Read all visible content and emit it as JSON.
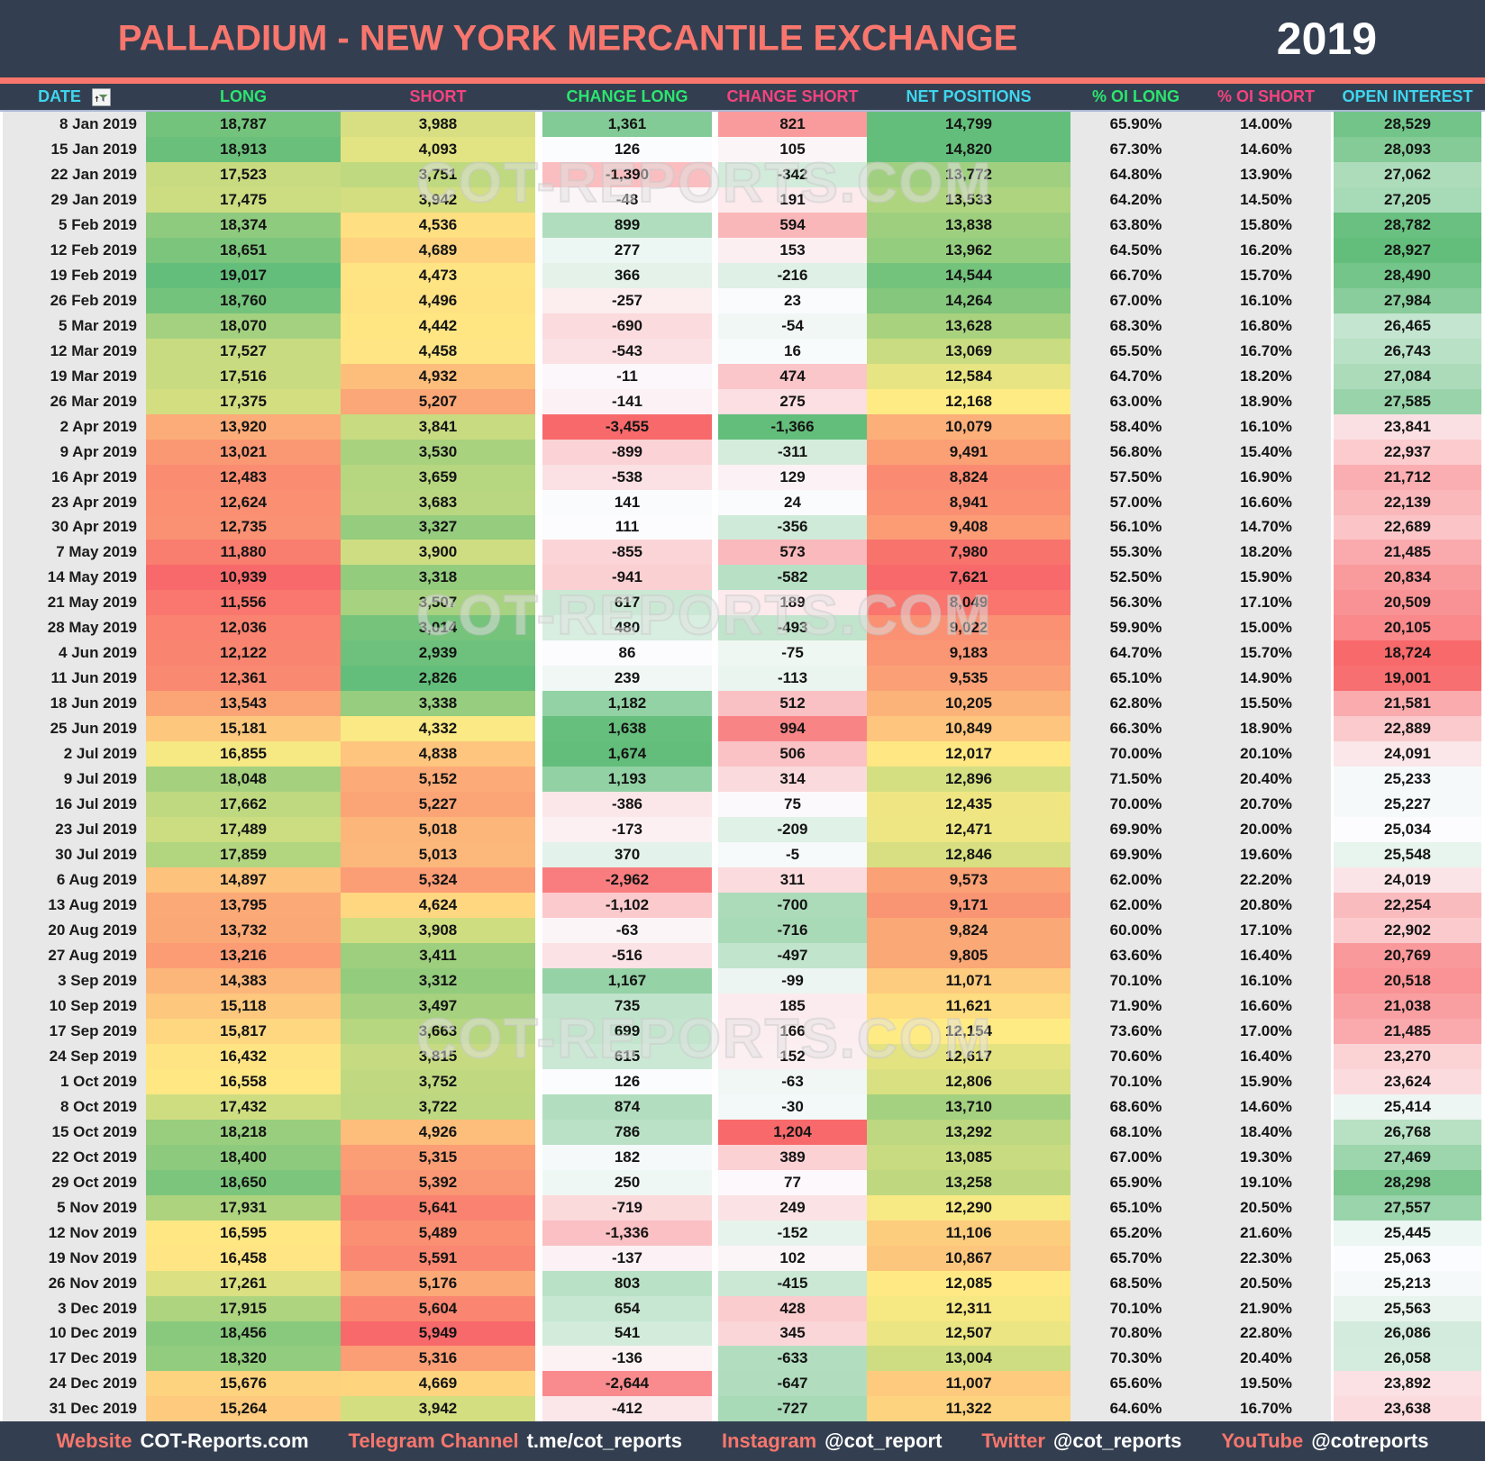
{
  "header": {
    "title": "PALLADIUM - NEW YORK MERCANTILE EXCHANGE",
    "year": "2019"
  },
  "table": {
    "header": [
      {
        "key": "date",
        "label": "DATE",
        "color": "cyan"
      },
      {
        "key": "long",
        "label": "LONG",
        "color": "green"
      },
      {
        "key": "short",
        "label": "SHORT",
        "color": "pink"
      },
      {
        "key": "change_long",
        "label": "CHANGE LONG",
        "color": "green"
      },
      {
        "key": "change_short",
        "label": "CHANGE SHORT",
        "color": "pink"
      },
      {
        "key": "net_positions",
        "label": "NET POSITIONS",
        "color": "cyan"
      },
      {
        "key": "oi_long_pct",
        "label": "% OI LONG",
        "color": "green"
      },
      {
        "key": "oi_short_pct",
        "label": "% OI SHORT",
        "color": "pink"
      },
      {
        "key": "open_interest",
        "label": "OPEN INTEREST",
        "color": "cyan"
      }
    ]
  },
  "watermark": {
    "text": "COT-REPORTS.COM"
  },
  "footer": {
    "links": [
      {
        "label": "Website",
        "value": "COT-Reports.com"
      },
      {
        "label": "Telegram Channel",
        "value": "t.me/cot_reports"
      },
      {
        "label": "Instagram",
        "value": "@cot_report"
      },
      {
        "label": "Twitter",
        "value": "@cot_reports"
      },
      {
        "label": "YouTube",
        "value": "@cotreports"
      }
    ]
  },
  "colors": {
    "navy": "#333F50",
    "salmon": "#F8766D",
    "cyan": "#3FD6EE",
    "green": "#2BE56F",
    "pink": "#F4437E",
    "gray": "#E8E8E8",
    "scale_red": "#F8696B",
    "scale_yellow": "#FFEB84",
    "scale_green": "#63BE7B",
    "scale_white": "#FCFCFF"
  },
  "chart_data": {
    "type": "table",
    "title": "PALLADIUM - NEW YORK MERCANTILE EXCHANGE",
    "year": "2019",
    "columns": [
      "DATE",
      "LONG",
      "SHORT",
      "CHANGE LONG",
      "CHANGE SHORT",
      "NET POSITIONS",
      "% OI LONG",
      "% OI SHORT",
      "OPEN INTEREST"
    ],
    "color_scales": {
      "LONG": "red-yellow-green (min-median-max)",
      "SHORT": "green-yellow-red (min-median-max)",
      "CHANGE LONG": "red-white-green (min-median-max)",
      "CHANGE SHORT": "green-white-red (min-median-max)",
      "NET POSITIONS": "red-yellow-green (min-median-max)",
      "OPEN INTEREST": "red-white-green (min-median-max)"
    },
    "rows": [
      [
        "8 Jan 2019",
        "18,787",
        "3,988",
        "1,361",
        "821",
        "14,799",
        "65.90%",
        "14.00%",
        "28,529"
      ],
      [
        "15 Jan 2019",
        "18,913",
        "4,093",
        "126",
        "105",
        "14,820",
        "67.30%",
        "14.60%",
        "28,093"
      ],
      [
        "22 Jan 2019",
        "17,523",
        "3,751",
        "-1,390",
        "-342",
        "13,772",
        "64.80%",
        "13.90%",
        "27,062"
      ],
      [
        "29 Jan 2019",
        "17,475",
        "3,942",
        "-48",
        "191",
        "13,533",
        "64.20%",
        "14.50%",
        "27,205"
      ],
      [
        "5 Feb 2019",
        "18,374",
        "4,536",
        "899",
        "594",
        "13,838",
        "63.80%",
        "15.80%",
        "28,782"
      ],
      [
        "12 Feb 2019",
        "18,651",
        "4,689",
        "277",
        "153",
        "13,962",
        "64.50%",
        "16.20%",
        "28,927"
      ],
      [
        "19 Feb 2019",
        "19,017",
        "4,473",
        "366",
        "-216",
        "14,544",
        "66.70%",
        "15.70%",
        "28,490"
      ],
      [
        "26 Feb 2019",
        "18,760",
        "4,496",
        "-257",
        "23",
        "14,264",
        "67.00%",
        "16.10%",
        "27,984"
      ],
      [
        "5 Mar 2019",
        "18,070",
        "4,442",
        "-690",
        "-54",
        "13,628",
        "68.30%",
        "16.80%",
        "26,465"
      ],
      [
        "12 Mar 2019",
        "17,527",
        "4,458",
        "-543",
        "16",
        "13,069",
        "65.50%",
        "16.70%",
        "26,743"
      ],
      [
        "19 Mar 2019",
        "17,516",
        "4,932",
        "-11",
        "474",
        "12,584",
        "64.70%",
        "18.20%",
        "27,084"
      ],
      [
        "26 Mar 2019",
        "17,375",
        "5,207",
        "-141",
        "275",
        "12,168",
        "63.00%",
        "18.90%",
        "27,585"
      ],
      [
        "2 Apr 2019",
        "13,920",
        "3,841",
        "-3,455",
        "-1,366",
        "10,079",
        "58.40%",
        "16.10%",
        "23,841"
      ],
      [
        "9 Apr 2019",
        "13,021",
        "3,530",
        "-899",
        "-311",
        "9,491",
        "56.80%",
        "15.40%",
        "22,937"
      ],
      [
        "16 Apr 2019",
        "12,483",
        "3,659",
        "-538",
        "129",
        "8,824",
        "57.50%",
        "16.90%",
        "21,712"
      ],
      [
        "23 Apr 2019",
        "12,624",
        "3,683",
        "141",
        "24",
        "8,941",
        "57.00%",
        "16.60%",
        "22,139"
      ],
      [
        "30 Apr 2019",
        "12,735",
        "3,327",
        "111",
        "-356",
        "9,408",
        "56.10%",
        "14.70%",
        "22,689"
      ],
      [
        "7 May 2019",
        "11,880",
        "3,900",
        "-855",
        "573",
        "7,980",
        "55.30%",
        "18.20%",
        "21,485"
      ],
      [
        "14 May 2019",
        "10,939",
        "3,318",
        "-941",
        "-582",
        "7,621",
        "52.50%",
        "15.90%",
        "20,834"
      ],
      [
        "21 May 2019",
        "11,556",
        "3,507",
        "617",
        "189",
        "8,049",
        "56.30%",
        "17.10%",
        "20,509"
      ],
      [
        "28 May 2019",
        "12,036",
        "3,014",
        "480",
        "-493",
        "9,022",
        "59.90%",
        "15.00%",
        "20,105"
      ],
      [
        "4 Jun 2019",
        "12,122",
        "2,939",
        "86",
        "-75",
        "9,183",
        "64.70%",
        "15.70%",
        "18,724"
      ],
      [
        "11 Jun 2019",
        "12,361",
        "2,826",
        "239",
        "-113",
        "9,535",
        "65.10%",
        "14.90%",
        "19,001"
      ],
      [
        "18 Jun 2019",
        "13,543",
        "3,338",
        "1,182",
        "512",
        "10,205",
        "62.80%",
        "15.50%",
        "21,581"
      ],
      [
        "25 Jun 2019",
        "15,181",
        "4,332",
        "1,638",
        "994",
        "10,849",
        "66.30%",
        "18.90%",
        "22,889"
      ],
      [
        "2 Jul 2019",
        "16,855",
        "4,838",
        "1,674",
        "506",
        "12,017",
        "70.00%",
        "20.10%",
        "24,091"
      ],
      [
        "9 Jul 2019",
        "18,048",
        "5,152",
        "1,193",
        "314",
        "12,896",
        "71.50%",
        "20.40%",
        "25,233"
      ],
      [
        "16 Jul 2019",
        "17,662",
        "5,227",
        "-386",
        "75",
        "12,435",
        "70.00%",
        "20.70%",
        "25,227"
      ],
      [
        "23 Jul 2019",
        "17,489",
        "5,018",
        "-173",
        "-209",
        "12,471",
        "69.90%",
        "20.00%",
        "25,034"
      ],
      [
        "30 Jul 2019",
        "17,859",
        "5,013",
        "370",
        "-5",
        "12,846",
        "69.90%",
        "19.60%",
        "25,548"
      ],
      [
        "6 Aug 2019",
        "14,897",
        "5,324",
        "-2,962",
        "311",
        "9,573",
        "62.00%",
        "22.20%",
        "24,019"
      ],
      [
        "13 Aug 2019",
        "13,795",
        "4,624",
        "-1,102",
        "-700",
        "9,171",
        "62.00%",
        "20.80%",
        "22,254"
      ],
      [
        "20 Aug 2019",
        "13,732",
        "3,908",
        "-63",
        "-716",
        "9,824",
        "60.00%",
        "17.10%",
        "22,902"
      ],
      [
        "27 Aug 2019",
        "13,216",
        "3,411",
        "-516",
        "-497",
        "9,805",
        "63.60%",
        "16.40%",
        "20,769"
      ],
      [
        "3 Sep 2019",
        "14,383",
        "3,312",
        "1,167",
        "-99",
        "11,071",
        "70.10%",
        "16.10%",
        "20,518"
      ],
      [
        "10 Sep 2019",
        "15,118",
        "3,497",
        "735",
        "185",
        "11,621",
        "71.90%",
        "16.60%",
        "21,038"
      ],
      [
        "17 Sep 2019",
        "15,817",
        "3,663",
        "699",
        "166",
        "12,154",
        "73.60%",
        "17.00%",
        "21,485"
      ],
      [
        "24 Sep 2019",
        "16,432",
        "3,815",
        "615",
        "152",
        "12,617",
        "70.60%",
        "16.40%",
        "23,270"
      ],
      [
        "1 Oct 2019",
        "16,558",
        "3,752",
        "126",
        "-63",
        "12,806",
        "70.10%",
        "15.90%",
        "23,624"
      ],
      [
        "8 Oct 2019",
        "17,432",
        "3,722",
        "874",
        "-30",
        "13,710",
        "68.60%",
        "14.60%",
        "25,414"
      ],
      [
        "15 Oct 2019",
        "18,218",
        "4,926",
        "786",
        "1,204",
        "13,292",
        "68.10%",
        "18.40%",
        "26,768"
      ],
      [
        "22 Oct 2019",
        "18,400",
        "5,315",
        "182",
        "389",
        "13,085",
        "67.00%",
        "19.30%",
        "27,469"
      ],
      [
        "29 Oct 2019",
        "18,650",
        "5,392",
        "250",
        "77",
        "13,258",
        "65.90%",
        "19.10%",
        "28,298"
      ],
      [
        "5 Nov 2019",
        "17,931",
        "5,641",
        "-719",
        "249",
        "12,290",
        "65.10%",
        "20.50%",
        "27,557"
      ],
      [
        "12 Nov 2019",
        "16,595",
        "5,489",
        "-1,336",
        "-152",
        "11,106",
        "65.20%",
        "21.60%",
        "25,445"
      ],
      [
        "19 Nov 2019",
        "16,458",
        "5,591",
        "-137",
        "102",
        "10,867",
        "65.70%",
        "22.30%",
        "25,063"
      ],
      [
        "26 Nov 2019",
        "17,261",
        "5,176",
        "803",
        "-415",
        "12,085",
        "68.50%",
        "20.50%",
        "25,213"
      ],
      [
        "3 Dec 2019",
        "17,915",
        "5,604",
        "654",
        "428",
        "12,311",
        "70.10%",
        "21.90%",
        "25,563"
      ],
      [
        "10 Dec 2019",
        "18,456",
        "5,949",
        "541",
        "345",
        "12,507",
        "70.80%",
        "22.80%",
        "26,086"
      ],
      [
        "17 Dec 2019",
        "18,320",
        "5,316",
        "-136",
        "-633",
        "13,004",
        "70.30%",
        "20.40%",
        "26,058"
      ],
      [
        "24 Dec 2019",
        "15,676",
        "4,669",
        "-2,644",
        "-647",
        "11,007",
        "65.60%",
        "19.50%",
        "23,892"
      ],
      [
        "31 Dec 2019",
        "15,264",
        "3,942",
        "-412",
        "-727",
        "11,322",
        "64.60%",
        "16.70%",
        "23,638"
      ]
    ]
  }
}
